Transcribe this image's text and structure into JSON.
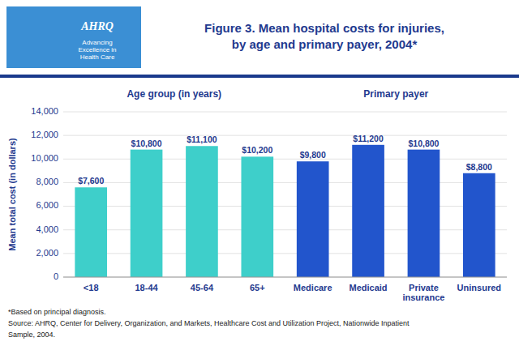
{
  "chart_data": {
    "type": "bar",
    "title": "Figure 3. Mean hospital costs for injuries,\nby age and primary payer, 2004*",
    "categories": [
      "<18",
      "18-44",
      "45-64",
      "65+",
      "Medicare",
      "Medicaid",
      "Private\ninsurance",
      "Uninsured"
    ],
    "values": [
      7600,
      10800,
      11100,
      10200,
      9800,
      11200,
      10800,
      8800
    ],
    "value_labels": [
      "$7,600",
      "$10,800",
      "$11,100",
      "$10,200",
      "$9,800",
      "$11,200",
      "$10,800",
      "$8,800"
    ],
    "colors": [
      "#3ECFCA",
      "#3ECFCA",
      "#3ECFCA",
      "#3ECFCA",
      "#2255CC",
      "#2255CC",
      "#2255CC",
      "#2255CC"
    ],
    "y_label": "Mean total cost (in dollars)",
    "ylim": [
      0,
      14000
    ],
    "yticks": [
      0,
      {
        "value": 2000,
        "label": "2,000"
      },
      {
        "value": 4000,
        "label": "4,000"
      },
      {
        "value": 6000,
        "label": "6,000"
      },
      {
        "value": 8000,
        "label": "8,000"
      },
      {
        "value": 10000,
        "label": "10,000"
      },
      {
        "value": 12000,
        "label": "12,000"
      },
      {
        "value": 14000,
        "label": "14,000"
      }
    ],
    "grid": true,
    "data_labels": true,
    "annotations": [
      "Age group (in years)",
      "Primary payer",
      "*Based on principal diagnosis.",
      "Source: AHRQ, Center for Delivery, Organization, and Markets, Healthcare Cost and Utilization Project, Nationwide Inpatient",
      "Sample, 2004.",
      "AHRQ",
      "Advancing\nExcellence in\nHealth Care"
    ]
  }
}
